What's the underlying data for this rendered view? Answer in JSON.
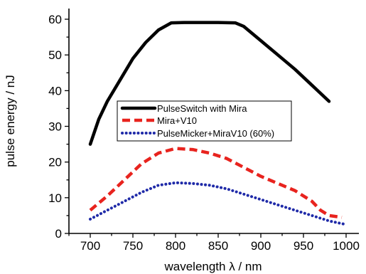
{
  "chart_data": {
    "type": "line",
    "title": "",
    "xlabel": "wavelength λ / nm",
    "ylabel": "pulse energy / nJ",
    "xlim": [
      675,
      1015
    ],
    "ylim": [
      0,
      63
    ],
    "x_ticks": [
      700,
      750,
      800,
      850,
      900,
      950,
      1000
    ],
    "y_ticks": [
      0,
      10,
      20,
      30,
      40,
      50,
      60
    ],
    "grid": false,
    "legend_position": "center-left",
    "series": [
      {
        "name": "PulseSwitch with Mira",
        "color": "#000000",
        "style": "solid",
        "x": [
          700,
          710,
          720,
          735,
          750,
          765,
          780,
          795,
          810,
          830,
          850,
          870,
          880,
          900,
          920,
          940,
          960,
          980
        ],
        "y": [
          25,
          32,
          37,
          43,
          49,
          53.5,
          57,
          59,
          59.1,
          59.1,
          59.1,
          59,
          58,
          54,
          50,
          46,
          41.5,
          37
        ]
      },
      {
        "name": "Mira+V10",
        "color": "#e8231e",
        "style": "dashed",
        "x": [
          700,
          720,
          740,
          760,
          780,
          800,
          820,
          840,
          860,
          880,
          900,
          920,
          940,
          960,
          970,
          980,
          995
        ],
        "y": [
          6.5,
          10.5,
          15,
          19.5,
          22.5,
          23.8,
          23.5,
          22.5,
          21,
          18.5,
          16,
          14,
          12,
          9,
          6.5,
          5,
          4.5
        ]
      },
      {
        "name": "PulseMicker+MiraV10 (60%)",
        "color": "#1f2aa8",
        "style": "dotted",
        "x": [
          700,
          720,
          740,
          760,
          780,
          800,
          820,
          840,
          860,
          880,
          900,
          920,
          940,
          960,
          980,
          1000
        ],
        "y": [
          4,
          6.5,
          9,
          11.5,
          13.5,
          14.2,
          14,
          13.5,
          12.5,
          11,
          9.5,
          8,
          6.5,
          5,
          3.5,
          2.5
        ]
      }
    ]
  }
}
